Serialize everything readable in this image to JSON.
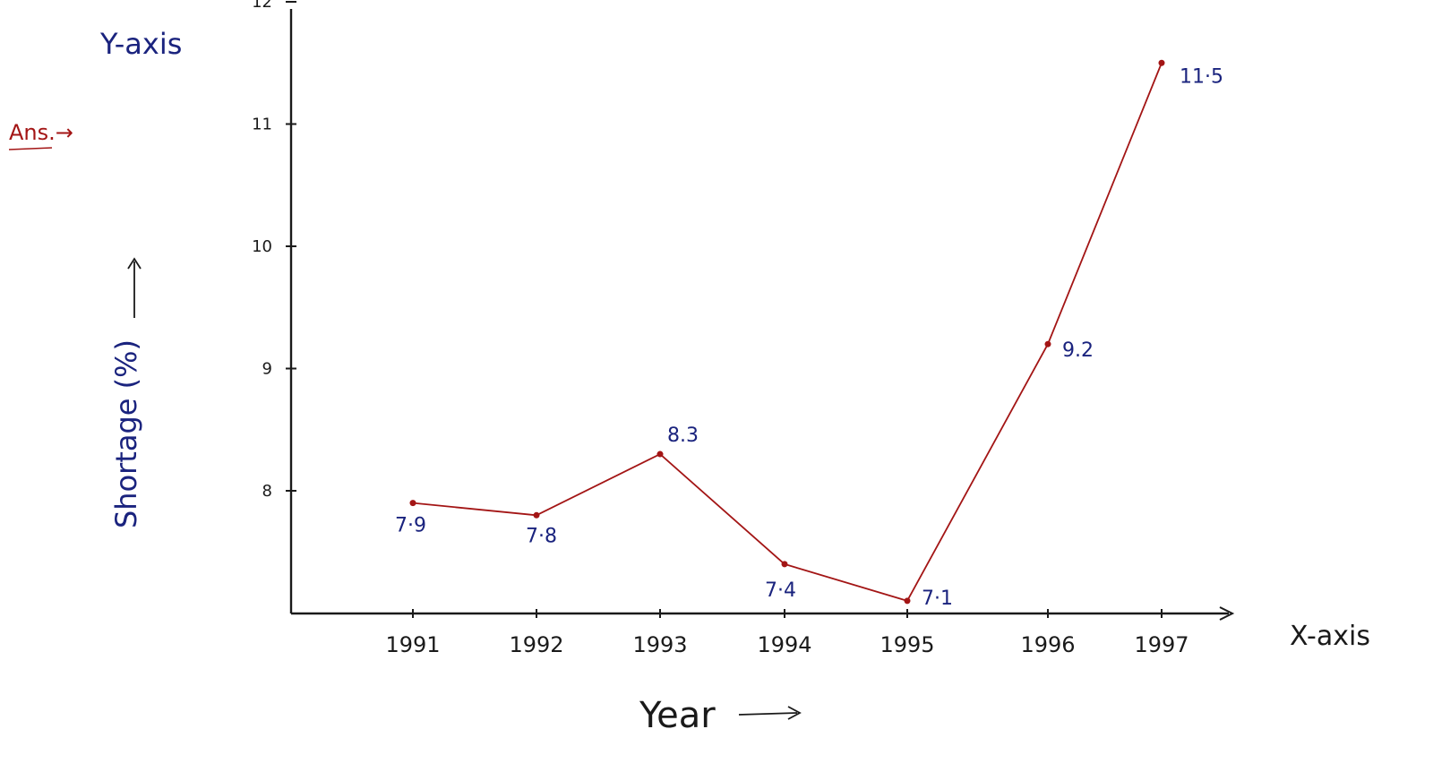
{
  "chart_data": {
    "type": "line",
    "x": [
      "1991",
      "1992",
      "1993",
      "1994",
      "1995",
      "1996",
      "1997"
    ],
    "series": [
      {
        "values": [
          7.9,
          7.8,
          8.3,
          7.4,
          7.1,
          9.2,
          11.5
        ]
      }
    ],
    "data_labels": [
      "7·9",
      "7·8",
      "8.3",
      "7·4",
      "7·1",
      "9.2",
      "11·5"
    ],
    "y_ticks": [
      8,
      9,
      10,
      11,
      12
    ],
    "y_tick_labels": [
      "8",
      "9",
      "10",
      "11",
      "12"
    ],
    "xlabel": "Year",
    "ylabel": "Shortage (%)",
    "x_axis_caption": "X-axis",
    "y_axis_caption": "Y-axis",
    "note": "Ans.→",
    "grid": false,
    "legend": "none",
    "colors": {
      "line": "#a31515",
      "labels": "#1a237e",
      "axes": "#1a1a1a",
      "note": "#a31515"
    }
  }
}
